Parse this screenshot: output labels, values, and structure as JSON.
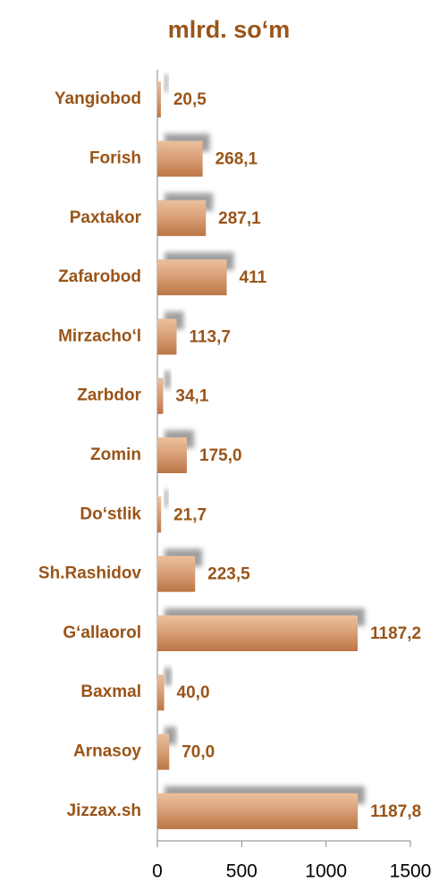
{
  "chart_data": {
    "type": "bar",
    "orientation": "horizontal",
    "title": "mlrd. so‘m",
    "categories": [
      "Yangiobod",
      "Forish",
      "Paxtakor",
      "Zafarobod",
      "Mirzacho‘l",
      "Zarbdor",
      "Zomin",
      "Do‘stlik",
      "Sh.Rashidov",
      "G‘allaorol",
      "Baxmal",
      "Arnasoy",
      "Jizzax.sh"
    ],
    "values": [
      20.5,
      268.1,
      287.1,
      411,
      113.7,
      34.1,
      175.0,
      21.7,
      223.5,
      1187.2,
      40.0,
      70.0,
      1187.8
    ],
    "value_labels": [
      "20,5",
      "268,1",
      "287,1",
      "411",
      "113,7",
      "34,1",
      "175,0",
      "21,7",
      "223,5",
      "1187,2",
      "40,0",
      "70,0",
      "1187,8"
    ],
    "color": "#d09062",
    "xlim": [
      0,
      1500
    ],
    "xticks": [
      0,
      500,
      1000,
      1500
    ]
  }
}
